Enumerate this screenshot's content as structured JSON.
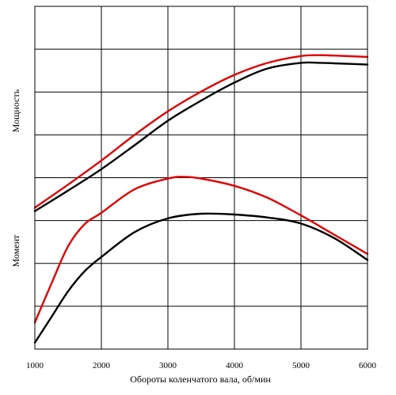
{
  "chart_data": {
    "type": "line",
    "title": "",
    "xlabel": "Обороты коленчатого вала, об/мин",
    "ylabel_top": "Мощность",
    "ylabel_bottom": "Момент",
    "xlim": [
      1000,
      6000
    ],
    "x_ticks": [
      1000,
      2000,
      3000,
      4000,
      5000,
      6000
    ],
    "y_grid_count": 8,
    "grid": true,
    "y_values_unitless": true,
    "series": [
      {
        "group": "power",
        "color": "#e00000",
        "x": [
          1000,
          1500,
          2000,
          2500,
          3000,
          3500,
          4000,
          4500,
          5000,
          5300,
          5500,
          6000
        ],
        "y": [
          3.3,
          3.84,
          4.4,
          5.0,
          5.55,
          6.01,
          6.4,
          6.68,
          6.84,
          6.86,
          6.85,
          6.82
        ]
      },
      {
        "group": "power",
        "color": "#000000",
        "x": [
          1000,
          1500,
          2000,
          2500,
          3000,
          3500,
          4000,
          4500,
          5000,
          5300,
          5500,
          6000
        ],
        "y": [
          3.22,
          3.7,
          4.2,
          4.76,
          5.33,
          5.8,
          6.22,
          6.55,
          6.68,
          6.68,
          6.67,
          6.64
        ]
      },
      {
        "group": "torque",
        "color": "#e00000",
        "x": [
          1000,
          1250,
          1500,
          1750,
          2000,
          2500,
          3000,
          3250,
          3500,
          4000,
          4500,
          5000,
          5500,
          6000
        ],
        "y": [
          0.62,
          1.53,
          2.4,
          2.92,
          3.18,
          3.73,
          3.98,
          4.02,
          3.98,
          3.81,
          3.53,
          3.12,
          2.67,
          2.22
        ]
      },
      {
        "group": "torque",
        "color": "#000000",
        "x": [
          1000,
          1250,
          1500,
          1750,
          2000,
          2500,
          3000,
          3500,
          4000,
          4500,
          5000,
          5500,
          6000
        ],
        "y": [
          0.15,
          0.75,
          1.35,
          1.82,
          2.15,
          2.73,
          3.05,
          3.16,
          3.14,
          3.07,
          2.93,
          2.59,
          2.08
        ]
      }
    ]
  }
}
